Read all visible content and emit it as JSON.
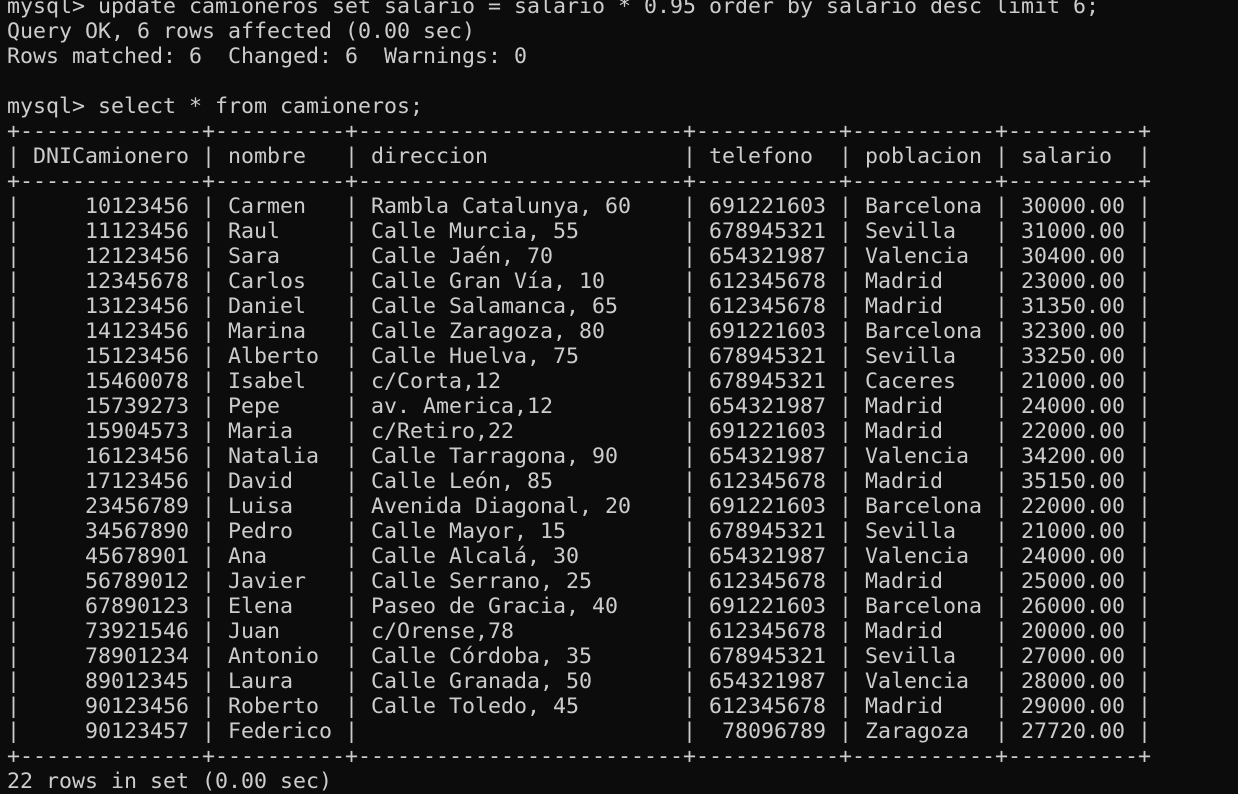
{
  "terminal": {
    "lines": [
      "mysql> update camioneros set salario = salario * 0.95 order by salario desc limit 6;",
      "Query OK, 6 rows affected (0.00 sec)",
      "Rows matched: 6  Changed: 6  Warnings: 0",
      "",
      "mysql> select * from camioneros;",
      "+--------------+----------+-------------------------+-----------+-----------+----------+",
      "| DNICamionero | nombre   | direccion               | telefono  | poblacion | salario  |",
      "+--------------+----------+-------------------------+-----------+-----------+----------+",
      "|     10123456 | Carmen   | Rambla Catalunya, 60    | 691221603 | Barcelona | 30000.00 |",
      "|     11123456 | Raul     | Calle Murcia, 55        | 678945321 | Sevilla   | 31000.00 |",
      "|     12123456 | Sara     | Calle Jaén, 70          | 654321987 | Valencia  | 30400.00 |",
      "|     12345678 | Carlos   | Calle Gran Vía, 10      | 612345678 | Madrid    | 23000.00 |",
      "|     13123456 | Daniel   | Calle Salamanca, 65     | 612345678 | Madrid    | 31350.00 |",
      "|     14123456 | Marina   | Calle Zaragoza, 80      | 691221603 | Barcelona | 32300.00 |",
      "|     15123456 | Alberto  | Calle Huelva, 75        | 678945321 | Sevilla   | 33250.00 |",
      "|     15460078 | Isabel   | c/Corta,12              | 678945321 | Caceres   | 21000.00 |",
      "|     15739273 | Pepe     | av. America,12          | 654321987 | Madrid    | 24000.00 |",
      "|     15904573 | Maria    | c/Retiro,22             | 691221603 | Madrid    | 22000.00 |",
      "|     16123456 | Natalia  | Calle Tarragona, 90     | 654321987 | Valencia  | 34200.00 |",
      "|     17123456 | David    | Calle León, 85          | 612345678 | Madrid    | 35150.00 |",
      "|     23456789 | Luisa    | Avenida Diagonal, 20    | 691221603 | Barcelona | 22000.00 |",
      "|     34567890 | Pedro    | Calle Mayor, 15         | 678945321 | Sevilla   | 21000.00 |",
      "|     45678901 | Ana      | Calle Alcalá, 30        | 654321987 | Valencia  | 24000.00 |",
      "|     56789012 | Javier   | Calle Serrano, 25       | 612345678 | Madrid    | 25000.00 |",
      "|     67890123 | Elena    | Paseo de Gracia, 40     | 691221603 | Barcelona | 26000.00 |",
      "|     73921546 | Juan     | c/Orense,78             | 612345678 | Madrid    | 20000.00 |",
      "|     78901234 | Antonio  | Calle Córdoba, 35       | 678945321 | Sevilla   | 27000.00 |",
      "|     89012345 | Laura    | Calle Granada, 50       | 654321987 | Valencia  | 28000.00 |",
      "|     90123456 | Roberto  | Calle Toledo, 45        | 612345678 | Madrid    | 29000.00 |",
      "|     90123457 | Federico |                         |  78096789 | Zaragoza  | 27720.00 |",
      "+--------------+----------+-------------------------+-----------+-----------+----------+",
      "22 rows in set (0.00 sec)"
    ]
  }
}
